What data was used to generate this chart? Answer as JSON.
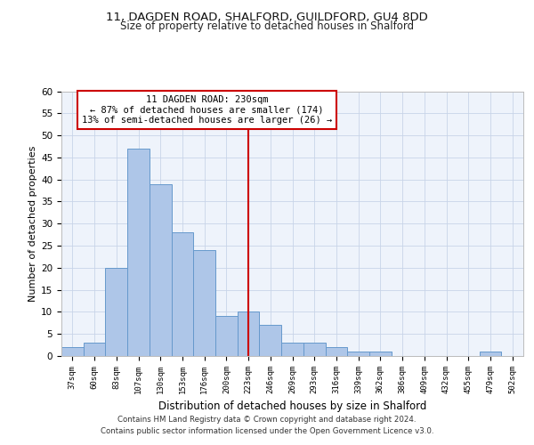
{
  "title_line1": "11, DAGDEN ROAD, SHALFORD, GUILDFORD, GU4 8DD",
  "title_line2": "Size of property relative to detached houses in Shalford",
  "xlabel": "Distribution of detached houses by size in Shalford",
  "ylabel": "Number of detached properties",
  "bin_labels": [
    "37sqm",
    "60sqm",
    "83sqm",
    "107sqm",
    "130sqm",
    "153sqm",
    "176sqm",
    "200sqm",
    "223sqm",
    "246sqm",
    "269sqm",
    "293sqm",
    "316sqm",
    "339sqm",
    "362sqm",
    "386sqm",
    "409sqm",
    "432sqm",
    "455sqm",
    "479sqm",
    "502sqm"
  ],
  "bar_values": [
    2,
    3,
    20,
    47,
    39,
    28,
    24,
    9,
    10,
    7,
    3,
    3,
    2,
    1,
    1,
    0,
    0,
    0,
    0,
    1,
    0
  ],
  "bar_color": "#aec6e8",
  "bar_edge_color": "#6699cc",
  "vline_bin_index": 8,
  "vline_color": "#cc0000",
  "annotation_title": "11 DAGDEN ROAD: 230sqm",
  "annotation_line2": "← 87% of detached houses are smaller (174)",
  "annotation_line3": "13% of semi-detached houses are larger (26) →",
  "annotation_box_color": "#ffffff",
  "annotation_box_edge": "#cc0000",
  "ylim": [
    0,
    60
  ],
  "yticks": [
    0,
    5,
    10,
    15,
    20,
    25,
    30,
    35,
    40,
    45,
    50,
    55,
    60
  ],
  "footnote1": "Contains HM Land Registry data © Crown copyright and database right 2024.",
  "footnote2": "Contains public sector information licensed under the Open Government Licence v3.0.",
  "bg_color": "#eef3fb",
  "grid_color": "#c8d4e8"
}
